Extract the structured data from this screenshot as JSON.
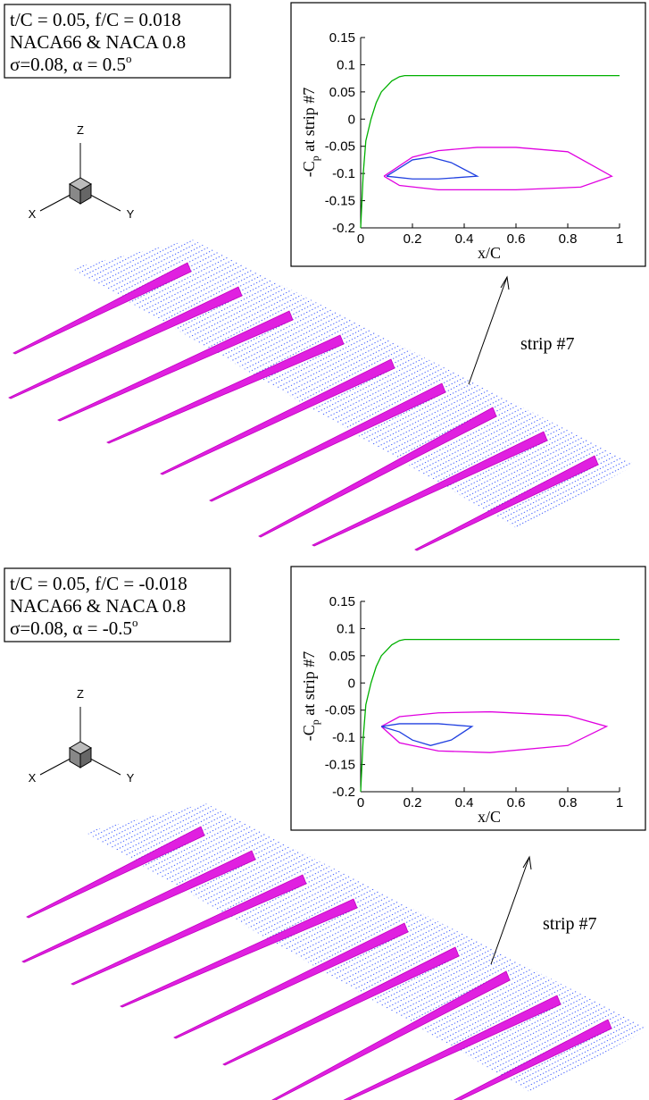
{
  "chart_data": [
    {
      "type": "line",
      "case_text": [
        "t/C = 0.05, f/C = 0.018",
        "NACA66 & NACA 0.8",
        "σ=0.08, α = 0.5"
      ],
      "case_text_sup": "o",
      "triad_labels": [
        "Z",
        "X",
        "Y"
      ],
      "annotation": "strip #7",
      "xlabel": "x/C",
      "ylabel": [
        "-C",
        "p",
        " at strip #7"
      ],
      "xlim": [
        0,
        1
      ],
      "ylim": [
        -0.2,
        0.15
      ],
      "xticks": [
        0,
        0.2,
        0.4,
        0.6,
        0.8,
        1
      ],
      "yticks": [
        -0.2,
        -0.15,
        -0.1,
        -0.05,
        0,
        0.05,
        0.1,
        0.15
      ],
      "series": [
        {
          "color": "#00b000",
          "x": [
            0,
            0.01,
            0.02,
            0.04,
            0.06,
            0.08,
            0.1,
            0.12,
            0.15,
            0.17,
            1
          ],
          "values": [
            -0.2,
            -0.1,
            -0.04,
            0.0,
            0.03,
            0.05,
            0.06,
            0.07,
            0.078,
            0.08,
            0.08
          ]
        },
        {
          "color": "#e000e0",
          "x": [
            0.09,
            0.2,
            0.3,
            0.45,
            0.6,
            0.8,
            0.97,
            0.85,
            0.6,
            0.3,
            0.15,
            0.09
          ],
          "values": [
            -0.105,
            -0.07,
            -0.058,
            -0.052,
            -0.052,
            -0.06,
            -0.105,
            -0.125,
            -0.13,
            -0.13,
            -0.122,
            -0.105
          ]
        },
        {
          "color": "#2040e0",
          "x": [
            0.1,
            0.15,
            0.2,
            0.27,
            0.35,
            0.45,
            0.3,
            0.2,
            0.1
          ],
          "values": [
            -0.105,
            -0.09,
            -0.075,
            -0.07,
            -0.08,
            -0.105,
            -0.11,
            -0.11,
            -0.105
          ]
        }
      ]
    },
    {
      "type": "line",
      "case_text": [
        "t/C = 0.05, f/C = -0.018",
        "NACA66 & NACA 0.8",
        "σ=0.08, α = -0.5"
      ],
      "case_text_sup": "o",
      "triad_labels": [
        "Z",
        "X",
        "Y"
      ],
      "annotation": "strip #7",
      "xlabel": "x/C",
      "ylabel": [
        "-C",
        "p",
        " at strip #7"
      ],
      "xlim": [
        0,
        1
      ],
      "ylim": [
        -0.2,
        0.15
      ],
      "xticks": [
        0,
        0.2,
        0.4,
        0.6,
        0.8,
        1
      ],
      "yticks": [
        -0.2,
        -0.15,
        -0.1,
        -0.05,
        0,
        0.05,
        0.1,
        0.15
      ],
      "series": [
        {
          "color": "#00b000",
          "x": [
            0,
            0.01,
            0.02,
            0.04,
            0.06,
            0.08,
            0.1,
            0.12,
            0.15,
            0.17,
            1
          ],
          "values": [
            -0.2,
            -0.1,
            -0.04,
            0.0,
            0.03,
            0.05,
            0.06,
            0.07,
            0.078,
            0.08,
            0.08
          ]
        },
        {
          "color": "#e000e0",
          "x": [
            0.08,
            0.15,
            0.3,
            0.5,
            0.8,
            0.95,
            0.8,
            0.5,
            0.3,
            0.15,
            0.08
          ],
          "values": [
            -0.08,
            -0.062,
            -0.055,
            -0.053,
            -0.06,
            -0.08,
            -0.115,
            -0.128,
            -0.125,
            -0.11,
            -0.08
          ]
        },
        {
          "color": "#2040e0",
          "x": [
            0.08,
            0.15,
            0.2,
            0.27,
            0.35,
            0.43,
            0.3,
            0.15,
            0.08
          ],
          "values": [
            -0.08,
            -0.09,
            -0.105,
            -0.115,
            -0.105,
            -0.08,
            -0.075,
            -0.075,
            -0.08
          ]
        }
      ]
    }
  ]
}
